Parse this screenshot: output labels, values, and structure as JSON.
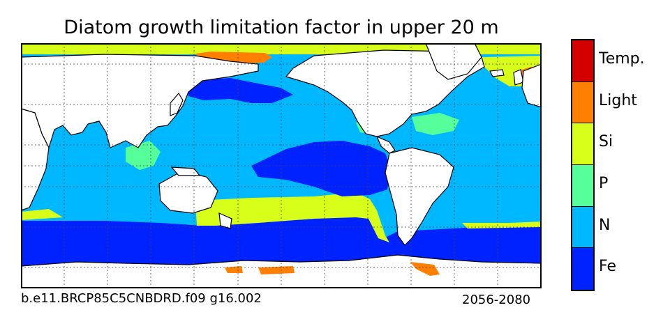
{
  "title": "Diatom growth limitation factor in upper 20 m",
  "footer_left": "b.e11.BRCP85C5CNBDRD.f09 g16.002",
  "footer_right": "2056-2080",
  "colors": {
    "Temp": "#d40000",
    "Light": "#ff8000",
    "Si": "#d8ff1a",
    "P": "#55ff99",
    "N": "#00b8ff",
    "Fe": "#0022ff",
    "land": "#ffffff",
    "coast": "#000000"
  },
  "colorbar": {
    "entries": [
      {
        "label": "Temp.",
        "color": "#d40000"
      },
      {
        "label": "Light",
        "color": "#ff8000"
      },
      {
        "label": "Si",
        "color": "#d8ff1a"
      },
      {
        "label": "P",
        "color": "#55ff99"
      },
      {
        "label": "N",
        "color": "#00b8ff"
      },
      {
        "label": "Fe",
        "color": "#0022ff"
      }
    ]
  }
}
